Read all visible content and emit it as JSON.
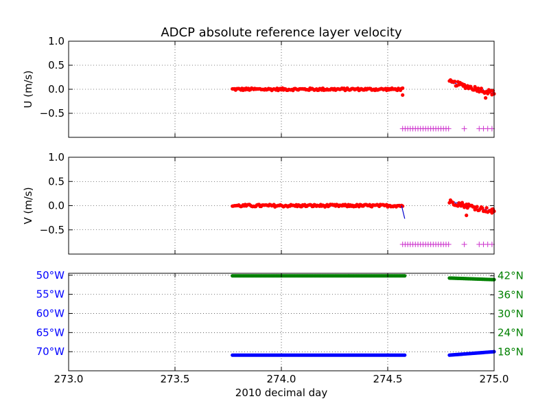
{
  "chart_data": {
    "type": "scatter",
    "title": "ADCP absolute reference layer velocity",
    "xlabel": "2010 decimal day",
    "xlim": [
      273.0,
      275.0
    ],
    "x_ticks": [
      "273.0",
      "273.5",
      "274.0",
      "274.5",
      "275.0"
    ],
    "grid": true,
    "panels": [
      {
        "id": "u",
        "ylabel": "U (m/s)",
        "ylim": [
          -1.0,
          1.0
        ],
        "y_ticks": [
          "1.0",
          "0.5",
          "0.0",
          "−0.5"
        ],
        "colors": {
          "points": "#ff0000",
          "line": "#0000cc",
          "flags": "#cc33cc"
        },
        "segments": [
          {
            "x_start": 273.77,
            "x_end": 274.57,
            "mean": 0.0,
            "jitter": 0.025
          },
          {
            "x_start": 274.79,
            "x_end": 275.0,
            "start": 0.15,
            "end": -0.08,
            "jitter": 0.05
          }
        ],
        "outliers": [
          {
            "x": 274.57,
            "y": -0.12
          },
          {
            "x": 274.96,
            "y": -0.18
          }
        ],
        "flags": {
          "y": -0.82,
          "dense": [
            274.57,
            274.79
          ],
          "sparse": [
            274.86,
            274.93,
            274.95,
            274.97,
            274.99
          ]
        }
      },
      {
        "id": "v",
        "ylabel": "V (m/s)",
        "ylim": [
          -1.0,
          1.0
        ],
        "y_ticks": [
          "1.0",
          "0.5",
          "0.0",
          "−0.5"
        ],
        "colors": {
          "points": "#ff0000",
          "line": "#0000cc",
          "flags": "#cc33cc"
        },
        "segments": [
          {
            "x_start": 273.77,
            "x_end": 274.57,
            "mean": 0.0,
            "jitter": 0.025
          },
          {
            "x_start": 274.79,
            "x_end": 275.0,
            "start": 0.08,
            "end": -0.12,
            "jitter": 0.05
          }
        ],
        "line_drop": {
          "x": [
            274.565,
            274.58
          ],
          "y": [
            0.0,
            -0.27
          ]
        },
        "outliers": [
          {
            "x": 274.87,
            "y": -0.2
          },
          {
            "x": 274.99,
            "y": -0.15
          }
        ],
        "flags": {
          "y": -0.8,
          "dense": [
            274.57,
            274.79
          ],
          "sparse": [
            274.86,
            274.93,
            274.95,
            274.97,
            274.99
          ]
        }
      },
      {
        "id": "position",
        "left_axis": {
          "label_color": "#0000ff",
          "ticks": [
            "50°W",
            "55°W",
            "60°W",
            "65°W",
            "70°W"
          ],
          "values": [
            -50,
            -55,
            -60,
            -65,
            -70
          ],
          "ylim": [
            -75,
            -49.5
          ]
        },
        "right_axis": {
          "label_color": "#008000",
          "ticks": [
            "42°N",
            "36°N",
            "30°N",
            "24°N",
            "18°N"
          ],
          "values": [
            42,
            36,
            30,
            24,
            18
          ],
          "ylim": [
            12,
            42.8
          ]
        },
        "series": [
          {
            "axis": "left",
            "color": "#0000ff",
            "segments": [
              {
                "x_start": 273.77,
                "x_end": 274.58,
                "start": -70.9,
                "end": -70.9
              },
              {
                "x_start": 274.79,
                "x_end": 275.0,
                "start": -70.9,
                "end": -70.0
              }
            ]
          },
          {
            "axis": "right",
            "color": "#008000",
            "segments": [
              {
                "x_start": 273.77,
                "x_end": 274.58,
                "start": 42.0,
                "end": 42.0
              },
              {
                "x_start": 274.79,
                "x_end": 275.0,
                "start": 41.3,
                "end": 40.8
              }
            ]
          }
        ]
      }
    ]
  }
}
